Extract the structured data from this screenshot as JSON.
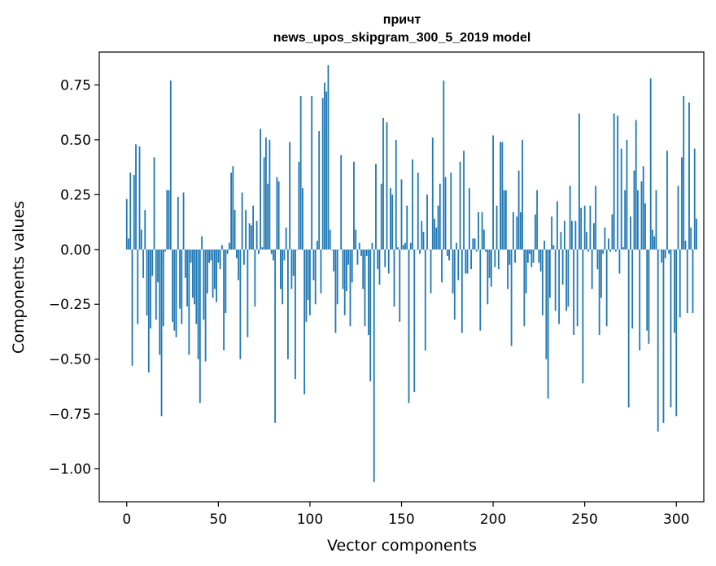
{
  "chart_data": {
    "type": "bar",
    "title_line1": "причт",
    "title_line2": "news_upos_skipgram_300_5_2019 model",
    "xlabel": "Vector components",
    "ylabel": "Components values",
    "xlim": [
      -15,
      315
    ],
    "ylim": [
      -1.15,
      0.9
    ],
    "xticks": [
      0,
      50,
      100,
      150,
      200,
      250,
      300
    ],
    "xtick_labels": [
      "0",
      "50",
      "100",
      "150",
      "200",
      "250",
      "300"
    ],
    "yticks": [
      -1.0,
      -0.75,
      -0.5,
      -0.25,
      0.0,
      0.25,
      0.5,
      0.75
    ],
    "ytick_labels": [
      "−1.00",
      "−0.75",
      "−0.50",
      "−0.25",
      "0.00",
      "0.25",
      "0.50",
      "0.75"
    ],
    "bar_color": "#1f77b4",
    "values": [
      0.23,
      0.05,
      0.35,
      -0.53,
      0.34,
      0.48,
      -0.34,
      0.47,
      0.09,
      -0.13,
      0.18,
      -0.3,
      -0.56,
      -0.36,
      -0.12,
      0.42,
      -0.32,
      -0.15,
      -0.48,
      -0.76,
      -0.35,
      -0.01,
      0.27,
      0.27,
      0.77,
      -0.33,
      -0.37,
      -0.4,
      0.24,
      -0.27,
      -0.34,
      0.26,
      -0.13,
      -0.26,
      -0.48,
      -0.06,
      -0.22,
      -0.25,
      -0.34,
      -0.5,
      -0.7,
      0.06,
      -0.32,
      -0.51,
      -0.2,
      -0.06,
      -0.05,
      -0.22,
      -0.18,
      -0.24,
      -0.06,
      -0.09,
      0.02,
      -0.46,
      -0.29,
      -0.02,
      0.03,
      0.35,
      0.38,
      0.18,
      -0.04,
      -0.14,
      -0.5,
      0.26,
      -0.07,
      0.18,
      -0.4,
      0.12,
      0.11,
      0.2,
      -0.26,
      0.13,
      -0.02,
      0.55,
      0.01,
      0.42,
      0.51,
      0.3,
      0.5,
      -0.02,
      -0.05,
      -0.79,
      0.33,
      0.31,
      -0.18,
      -0.25,
      -0.05,
      0.1,
      -0.5,
      0.49,
      -0.18,
      -0.12,
      -0.59,
      0.0,
      0.4,
      0.7,
      0.28,
      -0.66,
      -0.33,
      -0.23,
      -0.3,
      0.7,
      -0.14,
      -0.25,
      0.04,
      0.54,
      -0.2,
      0.69,
      0.76,
      0.72,
      0.84,
      0.09,
      0.0,
      -0.1,
      -0.38,
      -0.25,
      0.0,
      0.43,
      -0.18,
      -0.3,
      -0.19,
      -0.07,
      -0.35,
      -0.15,
      0.4,
      0.09,
      -0.07,
      0.03,
      -0.03,
      -0.18,
      -0.35,
      -0.03,
      -0.39,
      -0.6,
      0.03,
      -1.06,
      0.39,
      -0.09,
      -0.16,
      0.3,
      0.6,
      -0.08,
      0.58,
      -0.11,
      0.28,
      0.25,
      -0.26,
      0.5,
      0.01,
      -0.33,
      0.32,
      0.02,
      0.03,
      0.2,
      -0.7,
      0.03,
      0.41,
      -0.65,
      0.0,
      0.35,
      -0.02,
      0.13,
      0.08,
      -0.46,
      0.25,
      0.0,
      -0.2,
      0.51,
      0.14,
      0.1,
      0.2,
      0.3,
      -0.15,
      0.77,
      0.33,
      -0.03,
      -0.05,
      0.35,
      -0.2,
      -0.32,
      0.03,
      -0.14,
      0.4,
      -0.38,
      0.45,
      -0.11,
      -0.11,
      0.28,
      -0.09,
      0.05,
      0.05,
      -0.01,
      0.17,
      -0.37,
      0.17,
      0.09,
      -0.01,
      -0.25,
      -0.13,
      -0.17,
      0.52,
      -0.08,
      0.2,
      -0.09,
      0.49,
      0.49,
      0.27,
      0.27,
      -0.18,
      -0.07,
      -0.44,
      0.17,
      -0.06,
      0.15,
      0.36,
      0.17,
      0.5,
      -0.35,
      -0.2,
      -0.06,
      -0.02,
      -0.08,
      -0.06,
      0.16,
      0.27,
      -0.06,
      -0.1,
      -0.3,
      0.04,
      -0.5,
      -0.68,
      -0.22,
      0.15,
      0.02,
      -0.28,
      0.22,
      -0.34,
      0.08,
      -0.16,
      0.13,
      -0.28,
      -0.26,
      0.29,
      0.13,
      -0.39,
      0.13,
      -0.35,
      0.62,
      0.19,
      -0.61,
      0.2,
      0.08,
      -0.01,
      0.2,
      -0.18,
      0.12,
      0.29,
      -0.09,
      -0.39,
      -0.22,
      -0.02,
      0.1,
      -0.35,
      0.05,
      -0.01,
      0.16,
      0.62,
      -0.01,
      0.61,
      -0.11,
      0.46,
      0.01,
      0.27,
      0.5,
      -0.72,
      0.15,
      -0.36,
      0.36,
      0.59,
      0.27,
      -0.46,
      0.31,
      0.38,
      0.21,
      -0.37,
      -0.43,
      0.78,
      0.09,
      0.06,
      0.27,
      -0.83,
      0.0,
      -0.06,
      -0.79,
      -0.04,
      0.45,
      -0.02,
      -0.72,
      0.0,
      -0.38,
      -0.76,
      0.29,
      -0.31,
      0.42,
      0.7,
      0.04,
      -0.29,
      0.67,
      0.1,
      -0.29,
      0.46,
      0.14
    ]
  }
}
